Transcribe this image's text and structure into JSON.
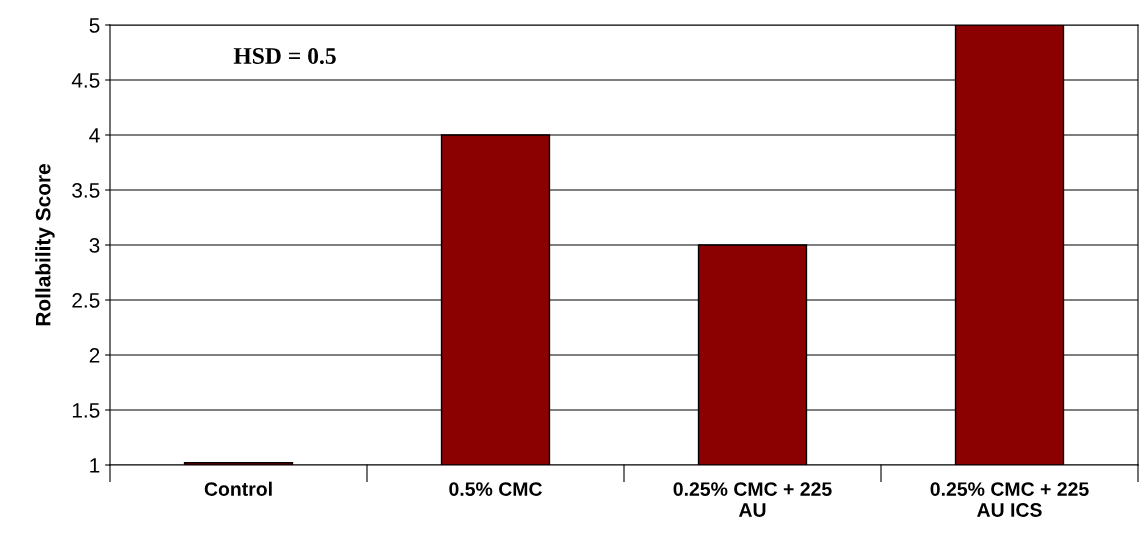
{
  "chart_data": {
    "type": "bar",
    "ylabel": "Rollability Score",
    "categories": [
      "Control",
      "0.5% CMC",
      "0.25% CMC + 225\nAU",
      "0.25% CMC + 225\nAU ICS"
    ],
    "values": [
      1.02,
      4,
      3,
      5
    ],
    "color": "#8b0000",
    "ylim": [
      1,
      5
    ],
    "yticks": [
      1,
      1.5,
      2,
      2.5,
      3,
      3.5,
      4,
      4.5,
      5
    ],
    "grid": "y",
    "annotations": [
      "HSD = 0.5"
    ]
  }
}
